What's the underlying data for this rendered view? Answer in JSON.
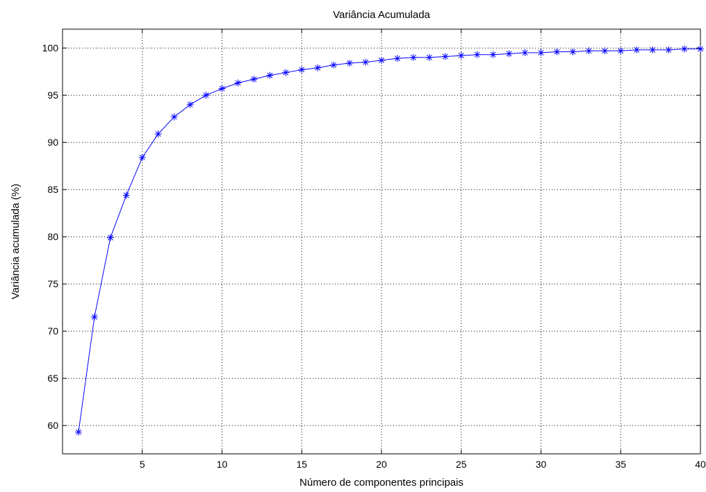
{
  "chart_data": {
    "type": "line",
    "title": "Variância Acumulada",
    "xlabel": "Número de componentes principais",
    "ylabel": "Variância acumulada (%)",
    "xlim": [
      0,
      40
    ],
    "ylim": [
      57,
      102
    ],
    "xticks": [
      5,
      10,
      15,
      20,
      25,
      30,
      35,
      40
    ],
    "yticks": [
      60,
      65,
      70,
      75,
      80,
      85,
      90,
      95,
      100
    ],
    "grid": true,
    "marker": "asterisk",
    "color": "#0000ff",
    "x": [
      1,
      2,
      3,
      4,
      5,
      6,
      7,
      8,
      9,
      10,
      11,
      12,
      13,
      14,
      15,
      16,
      17,
      18,
      19,
      20,
      21,
      22,
      23,
      24,
      25,
      26,
      27,
      28,
      29,
      30,
      31,
      32,
      33,
      34,
      35,
      36,
      37,
      38,
      39,
      40
    ],
    "y": [
      59.3,
      71.5,
      79.9,
      84.4,
      88.4,
      90.9,
      92.7,
      94.0,
      95.0,
      95.7,
      96.3,
      96.7,
      97.1,
      97.4,
      97.7,
      97.9,
      98.2,
      98.4,
      98.5,
      98.7,
      98.9,
      99.0,
      99.0,
      99.1,
      99.2,
      99.3,
      99.3,
      99.4,
      99.5,
      99.5,
      99.6,
      99.6,
      99.7,
      99.7,
      99.7,
      99.8,
      99.8,
      99.8,
      99.9,
      99.9
    ]
  }
}
